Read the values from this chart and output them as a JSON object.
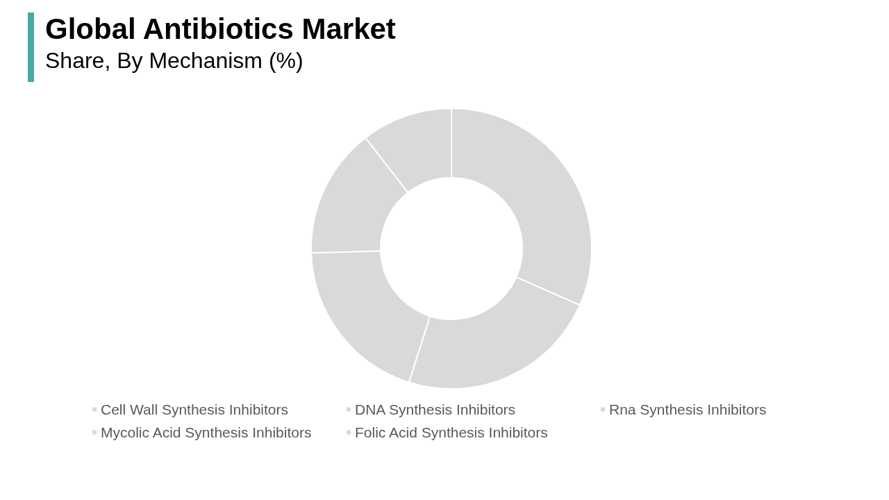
{
  "chart_data": {
    "type": "donut",
    "title": "Global Antibiotics Market",
    "subtitle": "Share, By Mechanism (%)",
    "categories": [
      "Cell Wall Synthesis Inhibitors",
      "DNA Synthesis Inhibitors",
      "Rna Synthesis Inhibitors",
      "Mycolic Acid Synthesis Inhibitors",
      "Folic Acid Synthesis Inhibitors"
    ],
    "values": [
      31.6,
      23.3,
      19.6,
      15.0,
      10.5
    ],
    "colors": [
      "#d9d9d9",
      "#d9d9d9",
      "#d9d9d9",
      "#d9d9d9",
      "#d9d9d9"
    ],
    "legend": "bottom"
  }
}
